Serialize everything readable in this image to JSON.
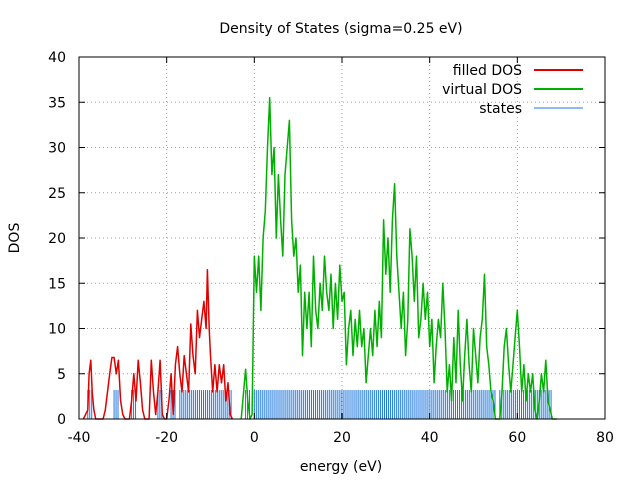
{
  "chart_data": {
    "type": "line",
    "title": "Density of States (sigma=0.25 eV)",
    "xlabel": "energy (eV)",
    "ylabel": "DOS",
    "xlim": [
      -40,
      80
    ],
    "ylim": [
      0,
      40
    ],
    "x_ticks": [
      -40,
      -20,
      0,
      20,
      40,
      60,
      80
    ],
    "y_ticks": [
      0,
      5,
      10,
      15,
      20,
      25,
      30,
      35,
      40
    ],
    "grid": true,
    "legend_position": "top-right",
    "colors": {
      "filled": "#e00000",
      "virtual": "#00b000",
      "states": "#1e78e0",
      "grid": "#a0a0a0"
    },
    "series": [
      {
        "name": "filled DOS",
        "points": [
          [
            -39,
            0
          ],
          [
            -38,
            1
          ],
          [
            -37.7,
            5
          ],
          [
            -37.3,
            6.5
          ],
          [
            -37,
            3
          ],
          [
            -36.6,
            1
          ],
          [
            -36.2,
            0
          ],
          [
            -34.5,
            0
          ],
          [
            -34,
            1
          ],
          [
            -33.5,
            3
          ],
          [
            -33,
            5
          ],
          [
            -32.5,
            6.8
          ],
          [
            -32,
            6.8
          ],
          [
            -31.5,
            5
          ],
          [
            -31,
            6.5
          ],
          [
            -30.5,
            2
          ],
          [
            -30,
            0.5
          ],
          [
            -29.5,
            0
          ],
          [
            -28.5,
            0
          ],
          [
            -28,
            2
          ],
          [
            -27.5,
            5
          ],
          [
            -27,
            2
          ],
          [
            -26.5,
            6.5
          ],
          [
            -26,
            4
          ],
          [
            -25.5,
            1
          ],
          [
            -25,
            0
          ],
          [
            -24,
            0
          ],
          [
            -23.5,
            6.5
          ],
          [
            -23,
            3
          ],
          [
            -22.5,
            0.5
          ],
          [
            -22,
            3
          ],
          [
            -21.5,
            6.5
          ],
          [
            -21,
            0.5
          ],
          [
            -20.5,
            0
          ],
          [
            -20,
            0
          ],
          [
            -19.5,
            2
          ],
          [
            -19,
            5
          ],
          [
            -18.5,
            0.5
          ],
          [
            -18,
            6
          ],
          [
            -17.5,
            8
          ],
          [
            -17,
            5
          ],
          [
            -16.5,
            3
          ],
          [
            -16,
            7
          ],
          [
            -15.5,
            5
          ],
          [
            -15,
            3
          ],
          [
            -14.5,
            10.5
          ],
          [
            -14,
            7
          ],
          [
            -13.5,
            5
          ],
          [
            -13,
            12
          ],
          [
            -12.5,
            9
          ],
          [
            -12,
            11
          ],
          [
            -11.5,
            13
          ],
          [
            -11,
            10
          ],
          [
            -10.7,
            16.5
          ],
          [
            -10.3,
            10
          ],
          [
            -10,
            7
          ],
          [
            -9.5,
            3
          ],
          [
            -9,
            6
          ],
          [
            -8.5,
            3
          ],
          [
            -8,
            6
          ],
          [
            -7.5,
            4
          ],
          [
            -7,
            6
          ],
          [
            -6.5,
            2
          ],
          [
            -6,
            4
          ],
          [
            -5.5,
            0.5
          ],
          [
            -5,
            0
          ]
        ]
      },
      {
        "name": "virtual DOS",
        "points": [
          [
            -3,
            0
          ],
          [
            -2,
            5.5
          ],
          [
            -1.5,
            2
          ],
          [
            -1,
            0
          ],
          [
            -0.5,
            0.5
          ],
          [
            0,
            18
          ],
          [
            0.5,
            14
          ],
          [
            1,
            18
          ],
          [
            1.5,
            12
          ],
          [
            2,
            20
          ],
          [
            2.5,
            23
          ],
          [
            3,
            30
          ],
          [
            3.5,
            35.5
          ],
          [
            4,
            27
          ],
          [
            4.5,
            30
          ],
          [
            5,
            20
          ],
          [
            5.5,
            27
          ],
          [
            6,
            22
          ],
          [
            6.5,
            18
          ],
          [
            7,
            27
          ],
          [
            7.5,
            30
          ],
          [
            8,
            33
          ],
          [
            8.5,
            22
          ],
          [
            9,
            18
          ],
          [
            9.5,
            20
          ],
          [
            10,
            14
          ],
          [
            10.5,
            17
          ],
          [
            11,
            7
          ],
          [
            11.5,
            14
          ],
          [
            12,
            10
          ],
          [
            12.5,
            14
          ],
          [
            13,
            8
          ],
          [
            13.5,
            18
          ],
          [
            14,
            12
          ],
          [
            14.5,
            10
          ],
          [
            15,
            15
          ],
          [
            15.5,
            12
          ],
          [
            16,
            18
          ],
          [
            16.5,
            14
          ],
          [
            17,
            12
          ],
          [
            17.5,
            16
          ],
          [
            18,
            10
          ],
          [
            18.5,
            15
          ],
          [
            19,
            11
          ],
          [
            19.5,
            17
          ],
          [
            20,
            13
          ],
          [
            20.5,
            14
          ],
          [
            21,
            6
          ],
          [
            21.5,
            10
          ],
          [
            22,
            12
          ],
          [
            22.5,
            7
          ],
          [
            23,
            11
          ],
          [
            23.5,
            8
          ],
          [
            24,
            12
          ],
          [
            24.5,
            8
          ],
          [
            25,
            10
          ],
          [
            25.5,
            4
          ],
          [
            26,
            7
          ],
          [
            26.5,
            10
          ],
          [
            27,
            7
          ],
          [
            27.5,
            12
          ],
          [
            28,
            8
          ],
          [
            28.5,
            13
          ],
          [
            29,
            9
          ],
          [
            29.5,
            22
          ],
          [
            30,
            16
          ],
          [
            30.5,
            20
          ],
          [
            31,
            14
          ],
          [
            31.5,
            22
          ],
          [
            32,
            26
          ],
          [
            32.5,
            18
          ],
          [
            33,
            14
          ],
          [
            33.5,
            10
          ],
          [
            34,
            14
          ],
          [
            34.5,
            7
          ],
          [
            35,
            11
          ],
          [
            35.5,
            21
          ],
          [
            36,
            18
          ],
          [
            36.5,
            13
          ],
          [
            37,
            18
          ],
          [
            37.5,
            9
          ],
          [
            38,
            11
          ],
          [
            38.5,
            15
          ],
          [
            39,
            11
          ],
          [
            39.5,
            14
          ],
          [
            40,
            8
          ],
          [
            40.5,
            11
          ],
          [
            41,
            4
          ],
          [
            41.5,
            8
          ],
          [
            42,
            11
          ],
          [
            42.5,
            9
          ],
          [
            43,
            15
          ],
          [
            43.5,
            10
          ],
          [
            44,
            3
          ],
          [
            44.5,
            6
          ],
          [
            45,
            2
          ],
          [
            45.5,
            9
          ],
          [
            46,
            4
          ],
          [
            46.5,
            12
          ],
          [
            47,
            6
          ],
          [
            47.5,
            2
          ],
          [
            48,
            7
          ],
          [
            48.5,
            11
          ],
          [
            49,
            6
          ],
          [
            49.5,
            3
          ],
          [
            50,
            10
          ],
          [
            50.5,
            7
          ],
          [
            51,
            4
          ],
          [
            51.5,
            9
          ],
          [
            52,
            11
          ],
          [
            52.5,
            16
          ],
          [
            53,
            8
          ],
          [
            53.5,
            6
          ],
          [
            54,
            3
          ],
          [
            54.5,
            2
          ],
          [
            55,
            0
          ],
          [
            56,
            0
          ],
          [
            56.5,
            3
          ],
          [
            57,
            8
          ],
          [
            57.5,
            10
          ],
          [
            58,
            6
          ],
          [
            58.5,
            3
          ],
          [
            59,
            6
          ],
          [
            59.5,
            9
          ],
          [
            60,
            12
          ],
          [
            60.5,
            8
          ],
          [
            61,
            3
          ],
          [
            61.5,
            6
          ],
          [
            62,
            2
          ],
          [
            62.5,
            5
          ],
          [
            63,
            3
          ],
          [
            63.5,
            5
          ],
          [
            64,
            1
          ],
          [
            64.5,
            0
          ],
          [
            65,
            2
          ],
          [
            65.5,
            5
          ],
          [
            66,
            3
          ],
          [
            66.5,
            6.5
          ],
          [
            67,
            2
          ],
          [
            67.5,
            1
          ],
          [
            68,
            0
          ],
          [
            69,
            0
          ]
        ]
      },
      {
        "name": "states",
        "bar_height": 3.2,
        "ranges": [
          [
            -38,
            -37
          ],
          [
            -32,
            -31
          ],
          [
            -28,
            -27
          ],
          [
            -22,
            -21
          ],
          [
            -19,
            -18
          ],
          [
            -17,
            -5
          ],
          [
            -2,
            -1
          ],
          [
            0,
            55
          ],
          [
            56,
            68
          ]
        ]
      }
    ]
  }
}
